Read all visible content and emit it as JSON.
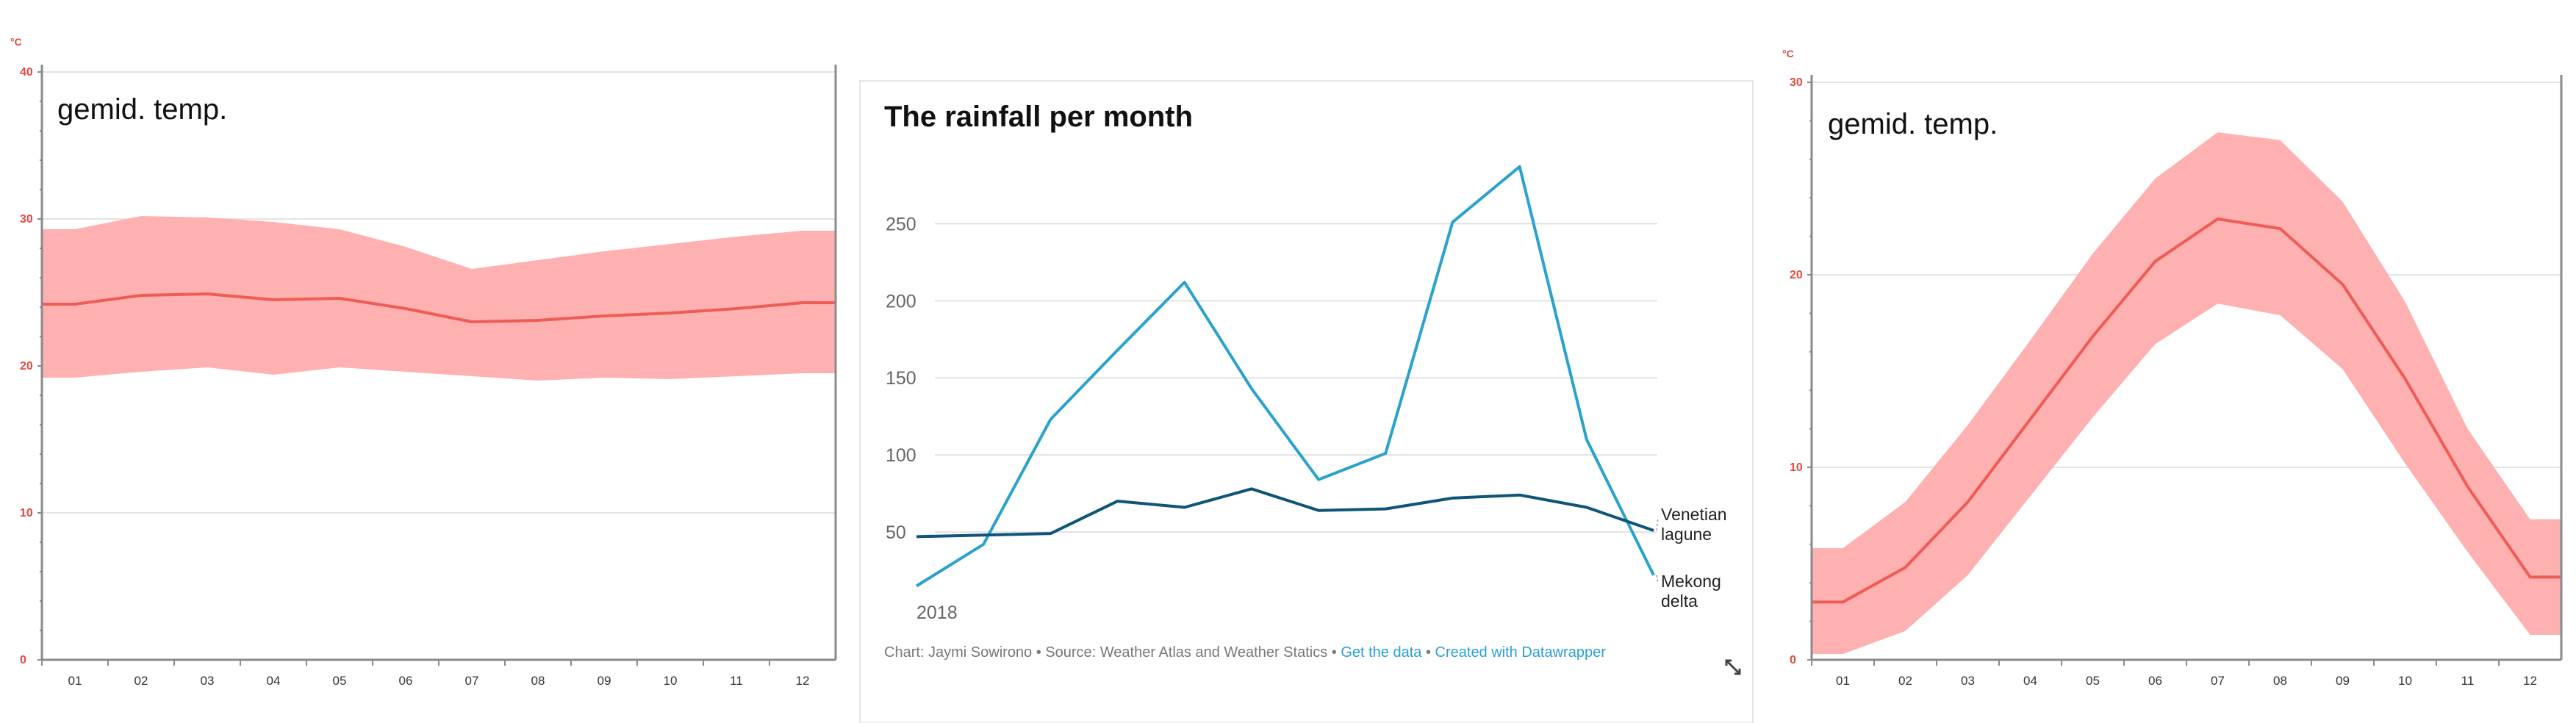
{
  "chart_data": [
    {
      "type": "area",
      "title": "gemid. temp.",
      "unit": "°C",
      "ylim": [
        0,
        40
      ],
      "yticks": [
        "0",
        "10",
        "20",
        "30",
        "40"
      ],
      "categories": [
        "01",
        "02",
        "03",
        "04",
        "05",
        "06",
        "07",
        "08",
        "09",
        "10",
        "11",
        "12"
      ],
      "series": [
        {
          "name": "",
          "role": "mean",
          "values": [
            24.2,
            24.8,
            24.9,
            24.5,
            24.6,
            23.9,
            23.0,
            23.1,
            23.4,
            23.6,
            23.9,
            24.3
          ]
        },
        {
          "name": "",
          "role": "max",
          "values": [
            29.3,
            30.2,
            30.1,
            29.8,
            29.3,
            28.1,
            26.6,
            27.2,
            27.8,
            28.3,
            28.8,
            29.2
          ]
        },
        {
          "name": "",
          "role": "min",
          "values": [
            19.2,
            19.6,
            19.9,
            19.4,
            19.9,
            19.6,
            19.3,
            19.0,
            19.2,
            19.1,
            19.3,
            19.5
          ]
        }
      ],
      "grid": true,
      "colors": {
        "band": "#ffb0b0",
        "line": "#ef5c55",
        "ticks": "#e8473f"
      }
    },
    {
      "type": "line",
      "title": "The rainfall per month",
      "x_start_label": "2018",
      "x": [
        1,
        2,
        3,
        4,
        5,
        6,
        7,
        8,
        9,
        10,
        11,
        12
      ],
      "ylim": [
        10,
        295
      ],
      "yticks": [
        "50",
        "100",
        "150",
        "200",
        "250"
      ],
      "series": [
        {
          "name": "Mekong delta",
          "color": "#2aa3cc",
          "values": [
            15,
            42,
            123,
            168,
            212,
            143,
            84,
            101,
            251,
            287,
            110,
            22
          ]
        },
        {
          "name": "Venetian lagune",
          "color": "#0e5577",
          "values": [
            47,
            48,
            49,
            70,
            66,
            78,
            64,
            65,
            72,
            74,
            66,
            51
          ]
        }
      ],
      "grid": true,
      "footer": {
        "credit": "Chart: Jaymi Sowirono • Source: Weather Atlas and Weather Statics • ",
        "get_data": "Get the data",
        "sep": " • ",
        "created": "Created with Datawrapper"
      },
      "expand_icon": "expand-icon"
    },
    {
      "type": "area",
      "title": "gemid. temp.",
      "unit": "°C",
      "ylim": [
        0,
        30
      ],
      "yticks": [
        "0",
        "10",
        "20",
        "30"
      ],
      "categories": [
        "01",
        "02",
        "03",
        "04",
        "05",
        "06",
        "07",
        "08",
        "09",
        "10",
        "11",
        "12"
      ],
      "series": [
        {
          "name": "",
          "role": "mean",
          "values": [
            3.0,
            4.8,
            8.2,
            12.5,
            16.8,
            20.7,
            22.9,
            22.4,
            19.5,
            14.6,
            9.0,
            4.3
          ]
        },
        {
          "name": "",
          "role": "max",
          "values": [
            5.8,
            8.2,
            12.2,
            16.6,
            21.1,
            25.0,
            27.4,
            27.0,
            23.8,
            18.6,
            12.0,
            7.3
          ]
        },
        {
          "name": "",
          "role": "min",
          "values": [
            0.3,
            1.5,
            4.4,
            8.5,
            12.6,
            16.4,
            18.5,
            17.9,
            15.1,
            10.2,
            5.6,
            1.3
          ]
        }
      ],
      "grid": true,
      "colors": {
        "band": "#ffb0b0",
        "line": "#ef5c55",
        "ticks": "#e8473f"
      }
    }
  ]
}
